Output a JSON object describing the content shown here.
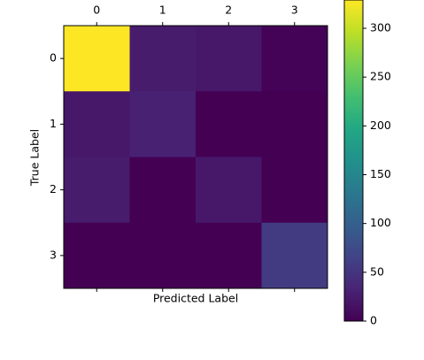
{
  "chart_data": {
    "type": "heatmap",
    "xlabel": "Predicted Label",
    "ylabel": "True Label",
    "x": [
      0,
      1,
      2,
      3
    ],
    "y": [
      0,
      1,
      2,
      3
    ],
    "values": [
      [
        329,
        25,
        22,
        2
      ],
      [
        22,
        30,
        0,
        0
      ],
      [
        25,
        0,
        22,
        0
      ],
      [
        0,
        0,
        0,
        57
      ]
    ],
    "colormap": "viridis",
    "zlim": [
      0,
      329
    ],
    "zticks": [
      0,
      50,
      100,
      150,
      200,
      250,
      300
    ]
  }
}
